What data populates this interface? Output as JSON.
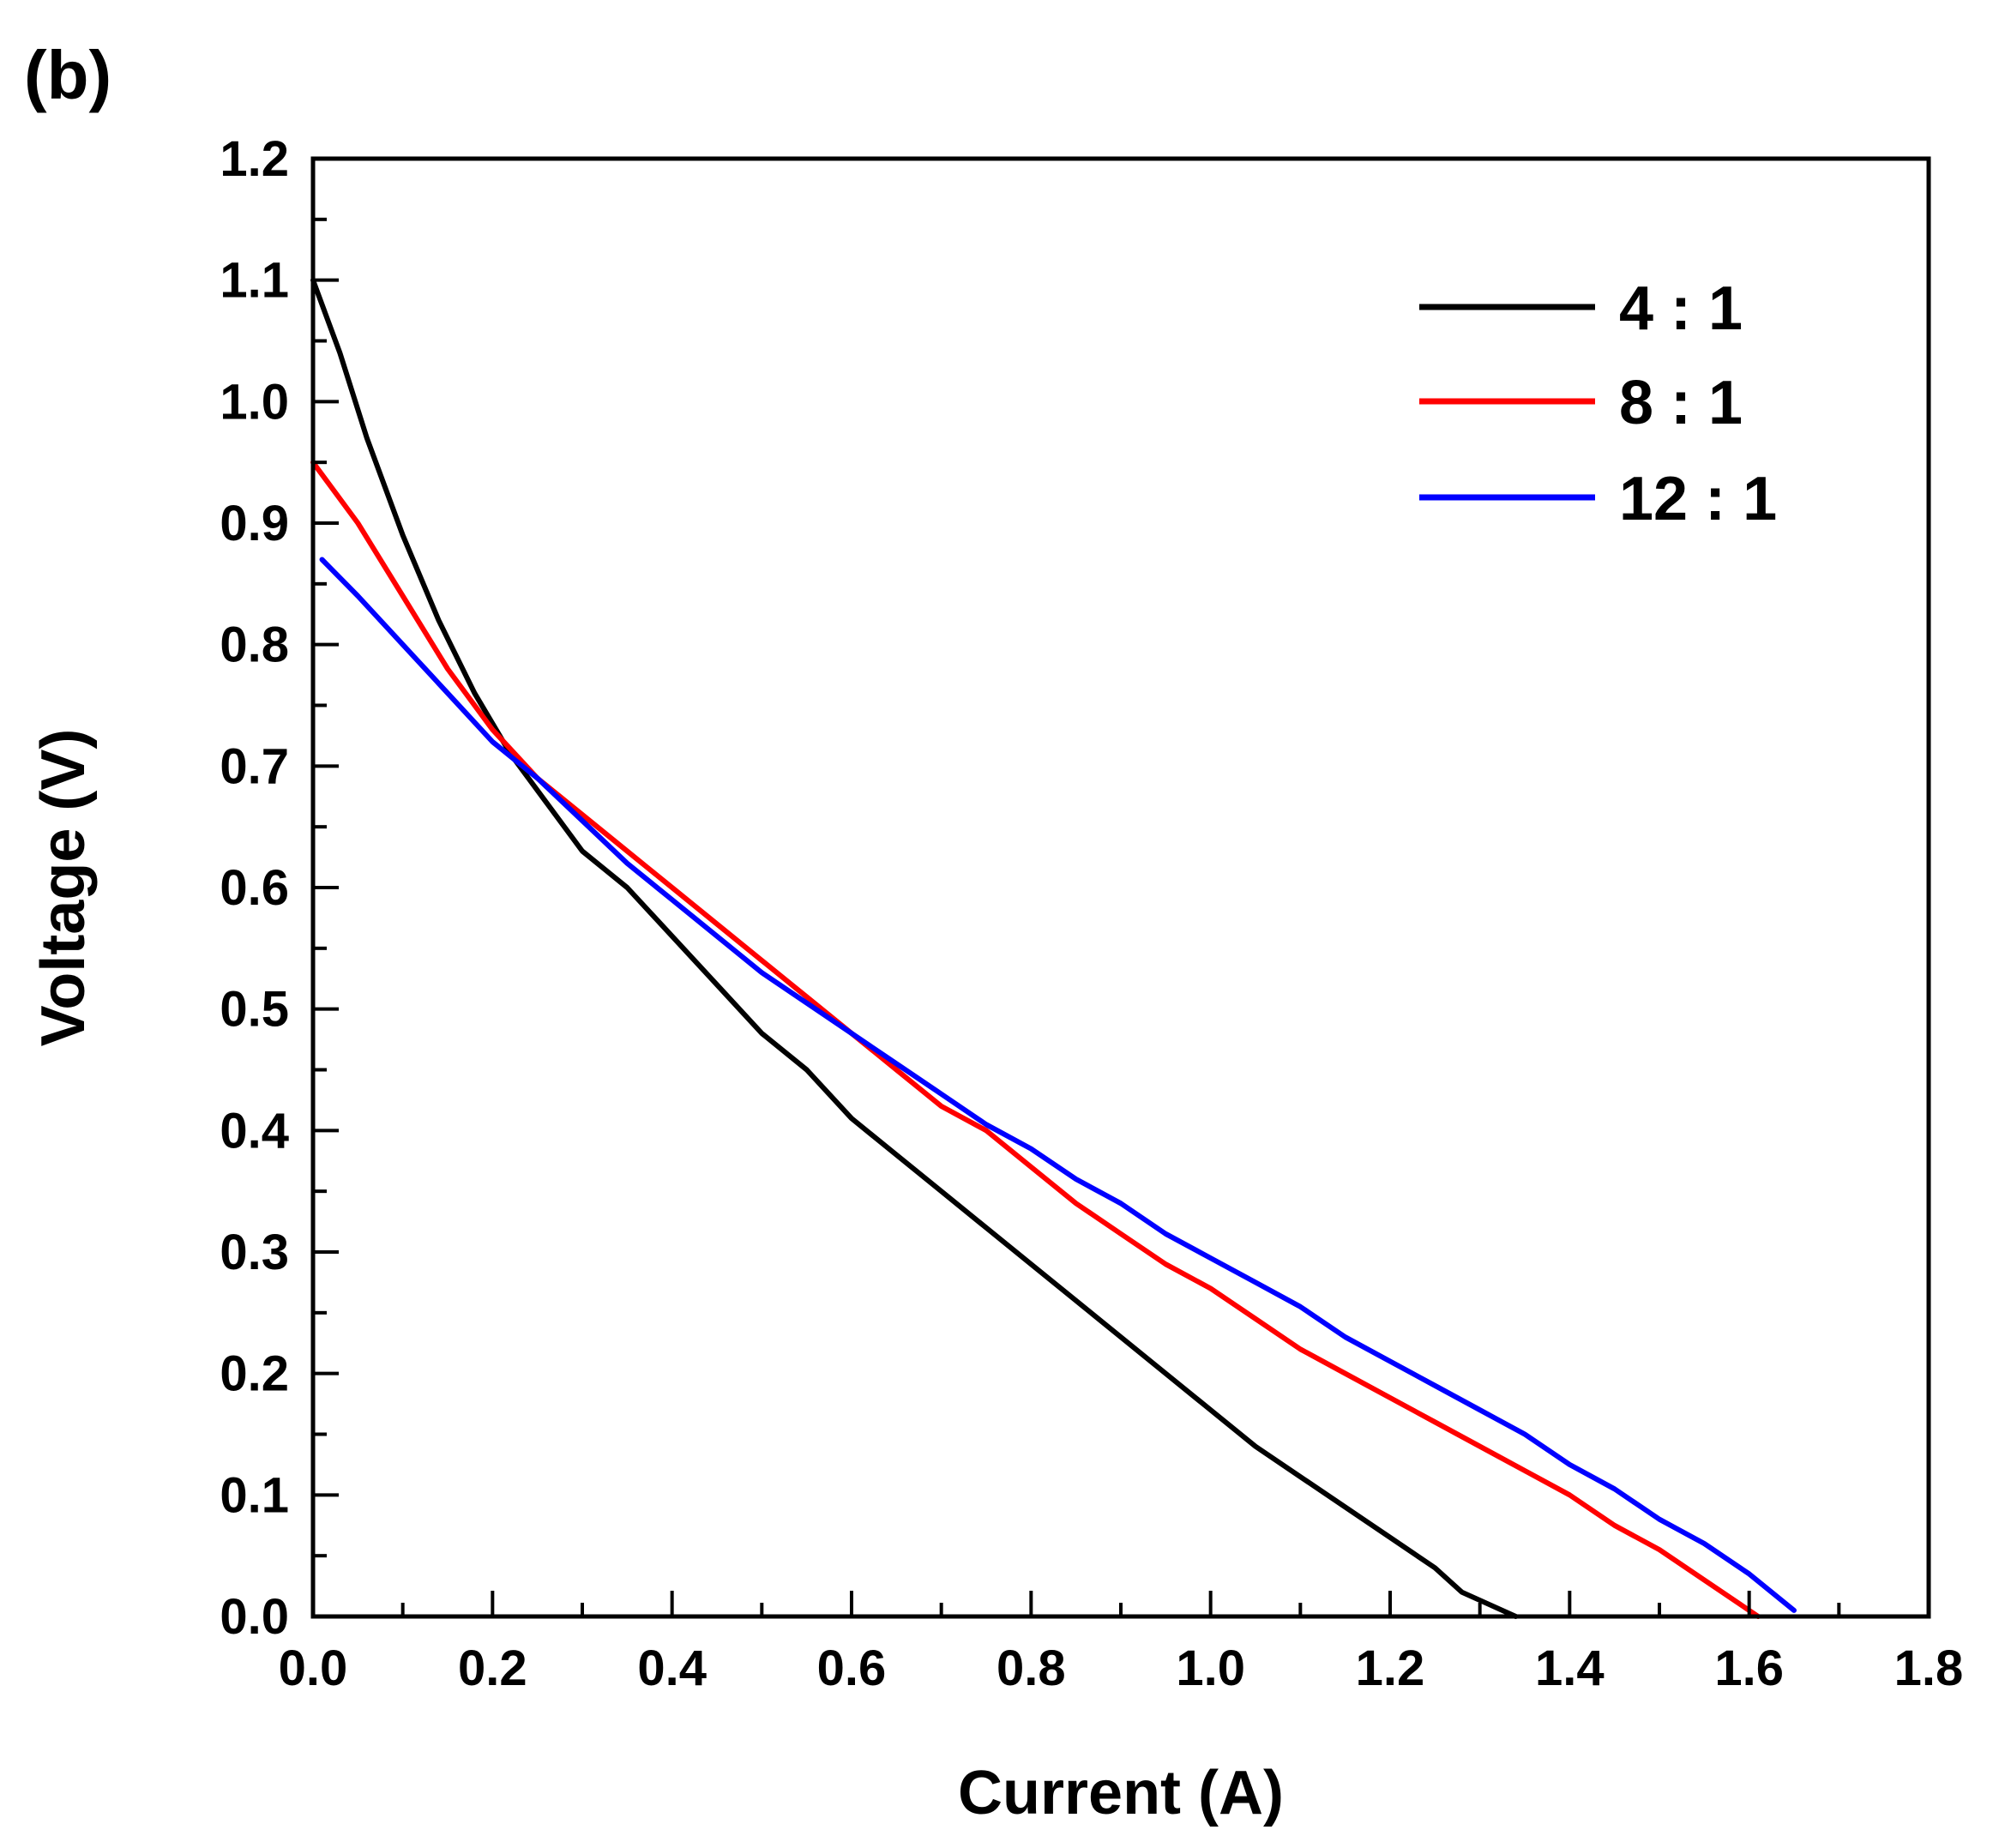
{
  "chart_data": {
    "type": "line",
    "panel_label": "(b)",
    "xlabel": "Current (A)",
    "ylabel": "Voltage (V)",
    "xlim": [
      0.0,
      1.8
    ],
    "ylim": [
      0.0,
      1.2
    ],
    "x_ticks": [
      "0.0",
      "0.2",
      "0.4",
      "0.6",
      "0.8",
      "1.0",
      "1.2",
      "1.4",
      "1.6",
      "1.8"
    ],
    "y_ticks": [
      "0.0",
      "0.1",
      "0.2",
      "0.3",
      "0.4",
      "0.5",
      "0.6",
      "0.7",
      "0.8",
      "0.9",
      "1.0",
      "1.1",
      "1.2"
    ],
    "grid": false,
    "legend_position": "top-right",
    "series": [
      {
        "name": "4 : 1",
        "color": "#000000",
        "x": [
          0.0,
          0.03,
          0.06,
          0.1,
          0.14,
          0.18,
          0.22,
          0.26,
          0.3,
          0.35,
          0.4,
          0.45,
          0.5,
          0.55,
          0.6,
          0.65,
          0.7,
          0.75,
          0.8,
          0.85,
          0.9,
          0.95,
          1.0,
          1.05,
          1.1,
          1.15,
          1.2,
          1.25,
          1.28,
          1.31,
          1.34
        ],
        "y": [
          1.1,
          1.04,
          0.97,
          0.89,
          0.82,
          0.76,
          0.71,
          0.67,
          0.63,
          0.6,
          0.56,
          0.52,
          0.48,
          0.45,
          0.41,
          0.38,
          0.35,
          0.32,
          0.29,
          0.26,
          0.23,
          0.2,
          0.17,
          0.14,
          0.115,
          0.09,
          0.065,
          0.04,
          0.02,
          0.01,
          0.0
        ]
      },
      {
        "name": "8 : 1",
        "color": "#ff0000",
        "x": [
          0.0,
          0.05,
          0.1,
          0.15,
          0.2,
          0.25,
          0.3,
          0.35,
          0.4,
          0.45,
          0.5,
          0.55,
          0.6,
          0.65,
          0.7,
          0.75,
          0.8,
          0.85,
          0.9,
          0.95,
          1.0,
          1.05,
          1.1,
          1.15,
          1.2,
          1.25,
          1.3,
          1.35,
          1.4,
          1.45,
          1.5,
          1.55,
          1.61
        ],
        "y": [
          0.95,
          0.9,
          0.84,
          0.78,
          0.73,
          0.69,
          0.66,
          0.63,
          0.6,
          0.57,
          0.54,
          0.51,
          0.48,
          0.45,
          0.42,
          0.4,
          0.37,
          0.34,
          0.315,
          0.29,
          0.27,
          0.245,
          0.22,
          0.2,
          0.18,
          0.16,
          0.14,
          0.12,
          0.1,
          0.075,
          0.055,
          0.03,
          0.0
        ]
      },
      {
        "name": "12 : 1",
        "color": "#0000ff",
        "x": [
          0.01,
          0.05,
          0.1,
          0.15,
          0.2,
          0.25,
          0.3,
          0.35,
          0.4,
          0.45,
          0.5,
          0.55,
          0.6,
          0.65,
          0.7,
          0.75,
          0.8,
          0.85,
          0.9,
          0.95,
          1.0,
          1.05,
          1.1,
          1.15,
          1.2,
          1.25,
          1.3,
          1.35,
          1.4,
          1.45,
          1.5,
          1.55,
          1.6,
          1.65
        ],
        "y": [
          0.87,
          0.84,
          0.8,
          0.76,
          0.72,
          0.69,
          0.655,
          0.62,
          0.59,
          0.56,
          0.53,
          0.505,
          0.48,
          0.455,
          0.43,
          0.405,
          0.385,
          0.36,
          0.34,
          0.315,
          0.295,
          0.275,
          0.255,
          0.23,
          0.21,
          0.19,
          0.17,
          0.15,
          0.125,
          0.105,
          0.08,
          0.06,
          0.035,
          0.005
        ]
      }
    ]
  }
}
